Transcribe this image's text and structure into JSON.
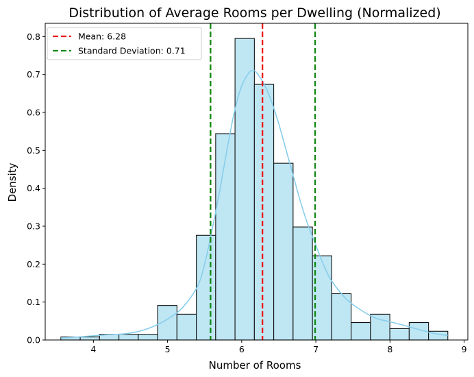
{
  "chart_data": {
    "type": "bar",
    "title": "Distribution of Average Rooms per Dwelling (Normalized)",
    "xlabel": "Number of Rooms",
    "ylabel": "Density",
    "xlim": [
      3.35,
      9.05
    ],
    "ylim": [
      0,
      0.835
    ],
    "x_ticks": [
      4,
      5,
      6,
      7,
      8,
      9
    ],
    "y_ticks": [
      0.0,
      0.1,
      0.2,
      0.3,
      0.4,
      0.5,
      0.6,
      0.7,
      0.8
    ],
    "y_tick_labels": [
      "0.0",
      "0.1",
      "0.2",
      "0.3",
      "0.4",
      "0.5",
      "0.6",
      "0.7",
      "0.8"
    ],
    "bin_edges": [
      3.561,
      3.822,
      4.083,
      4.344,
      4.605,
      4.866,
      5.127,
      5.388,
      5.649,
      5.91,
      6.171,
      6.432,
      6.693,
      6.954,
      7.215,
      7.476,
      7.737,
      7.998,
      8.259,
      8.52,
      8.78
    ],
    "values": [
      0.008,
      0.008,
      0.015,
      0.015,
      0.015,
      0.091,
      0.068,
      0.276,
      0.544,
      0.795,
      0.674,
      0.466,
      0.298,
      0.222,
      0.122,
      0.046,
      0.068,
      0.03,
      0.046,
      0.023
    ],
    "kde": {
      "x": [
        3.561,
        3.8,
        4.0,
        4.2,
        4.4,
        4.6,
        4.8,
        5.0,
        5.2,
        5.4,
        5.5,
        5.6,
        5.7,
        5.8,
        5.9,
        6.0,
        6.1,
        6.15,
        6.2,
        6.3,
        6.4,
        6.5,
        6.6,
        6.7,
        6.8,
        6.9,
        7.0,
        7.1,
        7.2,
        7.4,
        7.6,
        7.8,
        8.0,
        8.2,
        8.4,
        8.6,
        8.78
      ],
      "y": [
        0.005,
        0.008,
        0.011,
        0.014,
        0.016,
        0.022,
        0.035,
        0.055,
        0.085,
        0.14,
        0.2,
        0.29,
        0.39,
        0.5,
        0.6,
        0.67,
        0.705,
        0.71,
        0.705,
        0.675,
        0.63,
        0.57,
        0.5,
        0.43,
        0.36,
        0.3,
        0.25,
        0.2,
        0.16,
        0.11,
        0.08,
        0.058,
        0.048,
        0.038,
        0.027,
        0.017,
        0.012
      ]
    },
    "lines": [
      {
        "x": 6.28,
        "color": "#ee1111",
        "label": "Mean: 6.28"
      },
      {
        "x": 5.58,
        "color": "#118811",
        "label": "Standard Deviation: 0.71"
      },
      {
        "x": 6.99,
        "color": "#118811",
        "label": ""
      }
    ],
    "bar_color": "#bfe6f3",
    "bar_edge": "#111111",
    "kde_color": "#87ceeb",
    "grid": false,
    "legend_position": "top-left"
  }
}
